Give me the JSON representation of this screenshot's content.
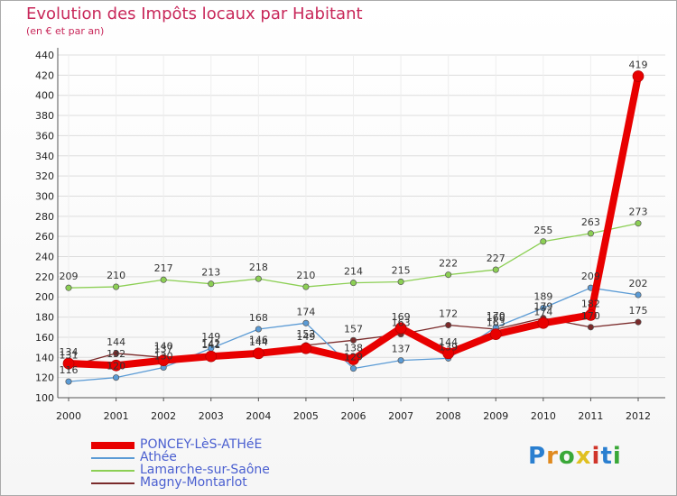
{
  "title": "Evolution des Impôts locaux par Habitant",
  "subtitle": "(en € et par an)",
  "logo": {
    "text": "Proxiti",
    "letter_colors": [
      "#2a7fd0",
      "#e08a1e",
      "#3aa838",
      "#e0c020",
      "#d0352a",
      "#2a7fd0",
      "#3aa838"
    ]
  },
  "chart_data": {
    "type": "line",
    "title": "Evolution des Impôts locaux par Habitant",
    "subtitle": "(en € et par an)",
    "xlabel": "",
    "ylabel": "",
    "ylim": [
      100,
      440
    ],
    "yticks": [
      100,
      120,
      140,
      160,
      180,
      200,
      220,
      240,
      260,
      280,
      300,
      320,
      340,
      360,
      380,
      400,
      420,
      440
    ],
    "x": [
      "2000",
      "2001",
      "2002",
      "2003",
      "2004",
      "2005",
      "2006",
      "2007",
      "2008",
      "2009",
      "2010",
      "2011",
      "2012"
    ],
    "grid": true,
    "series": [
      {
        "name": "PONCEY-LèS-ATHéE",
        "color": "#e80000",
        "values": [
          134,
          132,
          137,
          141,
          144,
          149,
          138,
          169,
          144,
          163,
          174,
          182,
          419
        ]
      },
      {
        "name": "Athée",
        "color": "#5b9bd5",
        "values": [
          116,
          120,
          130,
          149,
          168,
          174,
          129,
          137,
          139,
          170,
          189,
          209,
          202
        ]
      },
      {
        "name": "Lamarche-sur-Saône",
        "color": "#8ccf54",
        "values": [
          209,
          210,
          217,
          213,
          218,
          210,
          214,
          215,
          222,
          227,
          255,
          263,
          273
        ]
      },
      {
        "name": "Magny-Montarlot",
        "color": "#7a2a2a",
        "values": [
          131,
          144,
          140,
          142,
          146,
          152,
          157,
          163,
          172,
          168,
          179,
          170,
          175
        ]
      }
    ]
  }
}
